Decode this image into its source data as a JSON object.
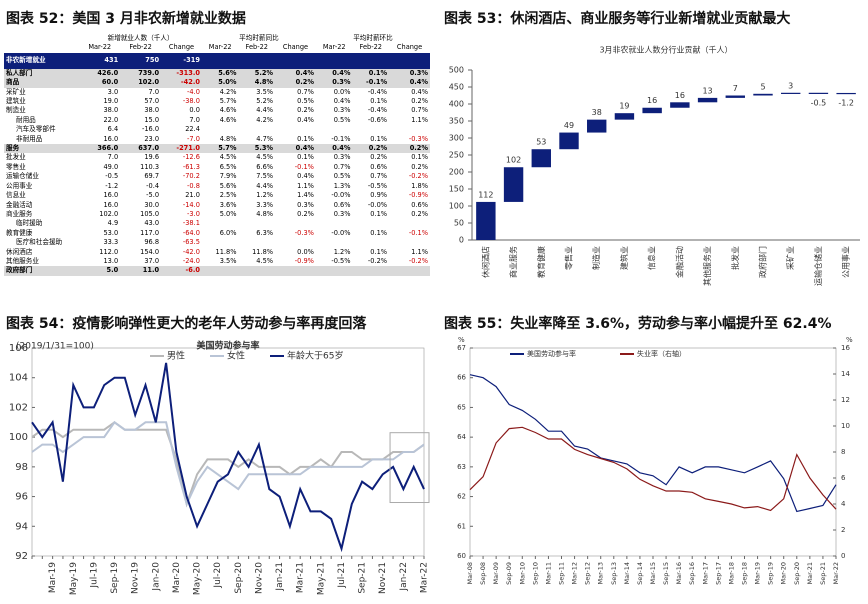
{
  "table": {
    "heading": "图表 52：美国 3 月非农新增就业数据",
    "group_headers": [
      "新增就业人数（千人）",
      "平均时薪同比",
      "平均时薪环比"
    ],
    "column_headers": [
      "Mar-22",
      "Feb-22",
      "Change"
    ],
    "rows": [
      {
        "name": "非农新增就业",
        "cells": [
          "431",
          "750",
          "-319"
        ]
      },
      {
        "name": "私人部门",
        "cells": [
          "426.0",
          "739.0",
          "-313.0",
          "5.6%",
          "5.2%",
          "0.4%",
          "0.4%",
          "0.1%",
          "0.3%"
        ]
      },
      {
        "name": "商品",
        "cells": [
          "60.0",
          "102.0",
          "-42.0",
          "5.0%",
          "4.8%",
          "0.2%",
          "0.3%",
          "-0.1%",
          "0.4%"
        ]
      },
      {
        "name": "采矿业",
        "cells": [
          "3.0",
          "7.0",
          "-4.0",
          "4.2%",
          "3.5%",
          "0.7%",
          "0.0%",
          "-0.4%",
          "0.4%"
        ]
      },
      {
        "name": "建筑业",
        "cells": [
          "19.0",
          "57.0",
          "-38.0",
          "5.7%",
          "5.2%",
          "0.5%",
          "0.4%",
          "0.1%",
          "0.2%"
        ]
      },
      {
        "name": "制造业",
        "cells": [
          "38.0",
          "38.0",
          "0.0",
          "4.6%",
          "4.4%",
          "0.2%",
          "0.3%",
          "-0.4%",
          "0.7%"
        ]
      },
      {
        "name": "耐用品",
        "cells": [
          "22.0",
          "15.0",
          "7.0",
          "4.6%",
          "4.2%",
          "0.4%",
          "0.5%",
          "-0.6%",
          "1.1%"
        ]
      },
      {
        "name": "汽车及零部件",
        "cells": [
          "6.4",
          "-16.0",
          "22.4"
        ]
      },
      {
        "name": "非耐用品",
        "cells": [
          "16.0",
          "23.0",
          "-7.0",
          "4.8%",
          "4.7%",
          "0.1%",
          "-0.1%",
          "0.1%",
          "-0.3%"
        ]
      },
      {
        "name": "服务",
        "cells": [
          "366.0",
          "637.0",
          "-271.0",
          "5.7%",
          "5.3%",
          "0.4%",
          "0.4%",
          "0.2%",
          "0.2%"
        ]
      },
      {
        "name": "批发业",
        "cells": [
          "7.0",
          "19.6",
          "-12.6",
          "4.5%",
          "4.5%",
          "0.1%",
          "0.3%",
          "0.2%",
          "0.1%"
        ]
      },
      {
        "name": "零售业",
        "cells": [
          "49.0",
          "110.3",
          "-61.3",
          "6.5%",
          "6.6%",
          "-0.1%",
          "0.7%",
          "0.6%",
          "0.2%"
        ]
      },
      {
        "name": "运输仓储业",
        "cells": [
          "-0.5",
          "69.7",
          "-70.2",
          "7.9%",
          "7.5%",
          "0.4%",
          "0.5%",
          "0.7%",
          "-0.2%"
        ]
      },
      {
        "name": "公用事业",
        "cells": [
          "-1.2",
          "-0.4",
          "-0.8",
          "5.6%",
          "4.4%",
          "1.1%",
          "1.3%",
          "-0.5%",
          "1.8%"
        ]
      },
      {
        "name": "信息业",
        "cells": [
          "16.0",
          "-5.0",
          "21.0",
          "2.5%",
          "1.2%",
          "1.4%",
          "-0.0%",
          "0.9%",
          "-0.9%"
        ]
      },
      {
        "name": "金融活动",
        "cells": [
          "16.0",
          "30.0",
          "-14.0",
          "3.6%",
          "3.3%",
          "0.3%",
          "0.6%",
          "-0.0%",
          "0.6%"
        ]
      },
      {
        "name": "商业服务",
        "cells": [
          "102.0",
          "105.0",
          "-3.0",
          "5.0%",
          "4.8%",
          "0.2%",
          "0.3%",
          "0.1%",
          "0.2%"
        ]
      },
      {
        "name": "临时援助",
        "cells": [
          "4.9",
          "43.0",
          "-38.1"
        ]
      },
      {
        "name": "教育健康",
        "cells": [
          "53.0",
          "117.0",
          "-64.0",
          "6.0%",
          "6.3%",
          "-0.3%",
          "-0.0%",
          "0.1%",
          "-0.1%"
        ]
      },
      {
        "name": "医疗和社会援助",
        "cells": [
          "33.3",
          "96.8",
          "-63.5"
        ]
      },
      {
        "name": "休闲酒店",
        "cells": [
          "112.0",
          "154.0",
          "-42.0",
          "11.8%",
          "11.8%",
          "0.0%",
          "1.2%",
          "0.1%",
          "1.1%"
        ]
      },
      {
        "name": "其他服务业",
        "cells": [
          "13.0",
          "37.0",
          "-24.0",
          "3.5%",
          "4.5%",
          "-0.9%",
          "-0.5%",
          "-0.2%",
          "-0.2%"
        ]
      },
      {
        "name": "政府部门",
        "cells": [
          "5.0",
          "11.0",
          "-6.0"
        ]
      }
    ]
  },
  "chart_data": [
    {
      "type": "waterfall",
      "heading": "图表 53：休闲酒店、商业服务等行业新增就业贡献最大",
      "title": "3月非农就业人数分行业贡献（千人）",
      "categories": [
        "休闲酒店",
        "商业服务",
        "教育健康",
        "零售业",
        "制造业",
        "建筑业",
        "信息业",
        "金融活动",
        "其他服务业",
        "批发业",
        "政府部门",
        "采矿业",
        "运输仓储业",
        "公用事业"
      ],
      "values": [
        112,
        102,
        53,
        49,
        38,
        19,
        16,
        16,
        13,
        7,
        5,
        3,
        -0.5,
        -1.2
      ],
      "color": "#0d1f7a",
      "ylim": [
        0,
        500
      ],
      "yticks": [
        0,
        50,
        100,
        150,
        200,
        250,
        300,
        350,
        400,
        450,
        500
      ]
    },
    {
      "type": "line",
      "heading": "图表 54：疫情影响弹性更大的老年人劳动参与率再度回落",
      "title": "美国劳动参与率",
      "subtitle": "(2019/1/31=100)",
      "categories": [
        null,
        null,
        "Mar-19",
        null,
        "May-19",
        null,
        "Jul-19",
        null,
        "Sep-19",
        null,
        "Nov-19",
        null,
        "Jan-20",
        null,
        "Mar-20",
        null,
        "May-20",
        null,
        "Jul-20",
        null,
        "Sep-20",
        null,
        "Nov-20",
        null,
        "Jan-21",
        null,
        "Mar-21",
        null,
        "May-21",
        null,
        "Jul-21",
        null,
        "Sep-21",
        null,
        "Nov-21",
        null,
        "Jan-22",
        null,
        "Mar-22"
      ],
      "series": [
        {
          "name": "男性",
          "color": "#b8b8b8",
          "values": [
            100,
            100.5,
            100.5,
            100,
            100.5,
            100.5,
            100.5,
            100.5,
            101,
            100.5,
            100.5,
            100.5,
            100.5,
            100.5,
            98.5,
            95.5,
            97.5,
            98.5,
            98.5,
            98.5,
            98,
            98.5,
            98,
            98,
            98,
            97.5,
            98,
            98,
            98.5,
            98,
            99,
            99,
            98.5,
            98.5,
            98.5,
            99,
            99,
            99,
            99.5
          ]
        },
        {
          "name": "女性",
          "color": "#b9c4d6",
          "values": [
            99,
            99.5,
            99.5,
            99,
            99.5,
            100,
            100,
            100,
            101,
            100.5,
            100.5,
            101,
            101,
            101,
            98,
            95.5,
            97,
            98,
            97.5,
            97,
            96.5,
            97.5,
            97.5,
            97.5,
            97.5,
            97.5,
            97.5,
            98,
            98,
            98,
            98,
            98,
            98,
            98.5,
            98.5,
            98.5,
            99,
            99,
            99.5
          ]
        },
        {
          "name": "年龄大于65岁",
          "color": "#0d1f7a",
          "values": [
            101,
            100,
            101,
            97,
            103.5,
            102,
            102,
            103.5,
            104,
            104,
            101.5,
            103.5,
            101,
            105,
            99,
            96,
            94,
            95.5,
            97,
            97.5,
            99,
            98,
            99.5,
            96.5,
            96,
            94,
            96.5,
            95,
            95,
            94.5,
            92.5,
            95.5,
            97,
            96.5,
            97.5,
            98,
            96.5,
            98,
            96.5
          ]
        }
      ],
      "ylim": [
        92,
        106
      ],
      "yticks": [
        92,
        94,
        96,
        98,
        100,
        102,
        104,
        106
      ]
    },
    {
      "type": "line",
      "heading": "图表 55：失业率降至 3.6%，劳动参与率小幅提升至 62.4%",
      "y2label": "%",
      "ylabel": "%",
      "categories": [
        "Mar-08",
        "Sep-08",
        "Mar-09",
        "Sep-09",
        "Mar-10",
        "Sep-10",
        "Mar-11",
        "Sep-11",
        "Mar-12",
        "Sep-12",
        "Mar-13",
        "Sep-13",
        "Mar-14",
        "Sep-14",
        "Mar-15",
        "Sep-15",
        "Mar-16",
        "Sep-16",
        "Mar-17",
        "Sep-17",
        "Mar-18",
        "Sep-18",
        "Mar-19",
        "Sep-19",
        "Mar-20",
        "Sep-20",
        "Mar-21",
        "Sep-21",
        "Mar-22"
      ],
      "series": [
        {
          "name": "美国劳动参与率",
          "color": "#0d1f7a",
          "values": [
            66.1,
            66.0,
            65.7,
            65.1,
            64.9,
            64.6,
            64.2,
            64.2,
            63.7,
            63.6,
            63.3,
            63.2,
            63.1,
            62.8,
            62.7,
            62.4,
            63.0,
            62.8,
            63.0,
            63.0,
            62.9,
            62.8,
            63.0,
            63.2,
            62.6,
            61.5,
            61.6,
            61.7,
            62.4
          ]
        },
        {
          "name": "失业率（右轴）",
          "color": "#8b1a1a",
          "axis": "y2",
          "values": [
            5.1,
            6.1,
            8.7,
            9.8,
            9.9,
            9.5,
            9.0,
            9.0,
            8.2,
            7.8,
            7.5,
            7.2,
            6.7,
            5.9,
            5.4,
            5.0,
            5.0,
            4.9,
            4.4,
            4.2,
            4.0,
            3.7,
            3.8,
            3.5,
            4.4,
            7.8,
            6.0,
            4.7,
            3.6
          ]
        }
      ],
      "ylim": [
        60,
        67
      ],
      "yticks": [
        60,
        61,
        62,
        63,
        64,
        65,
        66,
        67
      ],
      "y2lim": [
        0,
        16
      ],
      "y2ticks": [
        0,
        2,
        4,
        6,
        8,
        10,
        12,
        14,
        16
      ]
    }
  ]
}
